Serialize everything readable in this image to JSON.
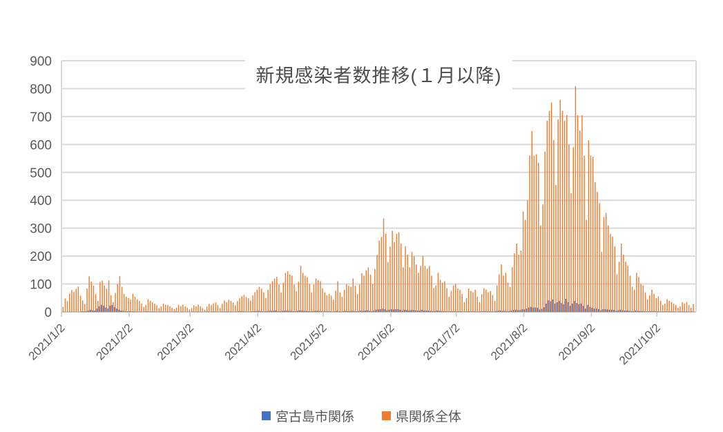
{
  "colors": {
    "background": "#ffffff",
    "grid": "#d9d9d9",
    "axis": "#c6c6c6",
    "text": "#595959",
    "series_blue": "#4472C4",
    "series_orange": "#ED7D31"
  },
  "chart_data": {
    "type": "bar",
    "title": "新規感染者数推移(１月以降)",
    "xlabel": "",
    "ylabel": "",
    "ylim": [
      0,
      900
    ],
    "y_ticks": [
      0,
      100,
      200,
      300,
      400,
      500,
      600,
      700,
      800,
      900
    ],
    "grid": "horizontal",
    "legend_position": "bottom",
    "start_date": "2021/1/2",
    "end_date": "2021/10/19",
    "x_ticks": [
      {
        "label": "2021/1/2",
        "day": 0
      },
      {
        "label": "2021/2/2",
        "day": 31
      },
      {
        "label": "2021/3/2",
        "day": 59
      },
      {
        "label": "2021/4/2",
        "day": 90
      },
      {
        "label": "2021/5/2",
        "day": 120
      },
      {
        "label": "2021/6/2",
        "day": 151
      },
      {
        "label": "2021/7/2",
        "day": 181
      },
      {
        "label": "2021/8/2",
        "day": 212
      },
      {
        "label": "2021/9/2",
        "day": 243
      },
      {
        "label": "2021/10/2",
        "day": 273
      }
    ],
    "series": [
      {
        "name": "宮古島市関係",
        "color": "#4472C4",
        "values": [
          0,
          0,
          0,
          0,
          0,
          0,
          0,
          0,
          0,
          2,
          2,
          3,
          5,
          8,
          6,
          5,
          12,
          20,
          25,
          22,
          16,
          12,
          22,
          25,
          18,
          12,
          8,
          5,
          4,
          3,
          2,
          3,
          2,
          2,
          1,
          1,
          1,
          0,
          1,
          2,
          1,
          1,
          1,
          0,
          0,
          1,
          1,
          0,
          1,
          0,
          0,
          0,
          1,
          1,
          0,
          1,
          0,
          0,
          0,
          0,
          1,
          0,
          1,
          0,
          0,
          0,
          1,
          1,
          0,
          1,
          1,
          0,
          0,
          1,
          1,
          1,
          2,
          1,
          1,
          0,
          1,
          2,
          2,
          2,
          1,
          1,
          1,
          2,
          3,
          3,
          4,
          3,
          2,
          1,
          3,
          4,
          4,
          5,
          5,
          3,
          2,
          4,
          5,
          5,
          4,
          4,
          3,
          2,
          4,
          6,
          5,
          4,
          4,
          3,
          2,
          3,
          4,
          4,
          3,
          3,
          2,
          2,
          2,
          2,
          1,
          2,
          4,
          2,
          1,
          3,
          4,
          3,
          3,
          4,
          3,
          2,
          3,
          5,
          4,
          5,
          6,
          4,
          3,
          5,
          8,
          9,
          10,
          12,
          10,
          6,
          8,
          10,
          9,
          10,
          10,
          8,
          5,
          8,
          7,
          5,
          7,
          7,
          6,
          5,
          5,
          7,
          5,
          5,
          5,
          4,
          3,
          3,
          5,
          4,
          3,
          3,
          2,
          2,
          2,
          3,
          3,
          2,
          2,
          2,
          1,
          1,
          2,
          2,
          2,
          2,
          1,
          1,
          2,
          2,
          2,
          2,
          2,
          1,
          1,
          3,
          4,
          5,
          4,
          4,
          3,
          3,
          5,
          7,
          8,
          6,
          7,
          10,
          9,
          12,
          16,
          18,
          16,
          16,
          15,
          9,
          11,
          17,
          30,
          42,
          38,
          45,
          30,
          35,
          40,
          32,
          28,
          47,
          35,
          22,
          30,
          40,
          32,
          28,
          30,
          22,
          12,
          25,
          18,
          15,
          12,
          12,
          10,
          6,
          10,
          10,
          9,
          8,
          8,
          7,
          4,
          6,
          8,
          6,
          5,
          5,
          4,
          3,
          3,
          5,
          4,
          3,
          3,
          2,
          2,
          2,
          3,
          2,
          2,
          2,
          1,
          1,
          1,
          2,
          1,
          1,
          1,
          1,
          0,
          1,
          1,
          1,
          1,
          1,
          0,
          1
        ]
      },
      {
        "name": "県関係全体",
        "color": "#ED7D31",
        "values": [
          18,
          48,
          39,
          66,
          78,
          72,
          83,
          91,
          58,
          42,
          28,
          84,
          128,
          108,
          94,
          64,
          40,
          108,
          112,
          95,
          83,
          113,
          60,
          35,
          68,
          100,
          128,
          90,
          65,
          55,
          50,
          44,
          65,
          55,
          45,
          40,
          30,
          18,
          25,
          46,
          40,
          35,
          30,
          24,
          14,
          20,
          30,
          26,
          25,
          20,
          15,
          10,
          15,
          25,
          20,
          26,
          20,
          15,
          9,
          14,
          24,
          20,
          26,
          20,
          14,
          8,
          19,
          29,
          25,
          31,
          34,
          25,
          14,
          29,
          41,
          35,
          44,
          40,
          34,
          24,
          39,
          49,
          56,
          61,
          54,
          49,
          41,
          59,
          71,
          80,
          90,
          84,
          70,
          50,
          79,
          100,
          110,
          120,
          126,
          98,
          70,
          104,
          140,
          146,
          134,
          130,
          98,
          74,
          108,
          165,
          140,
          130,
          124,
          100,
          70,
          98,
          120,
          114,
          110,
          84,
          70,
          60,
          64,
          58,
          44,
          76,
          110,
          70,
          55,
          79,
          100,
          94,
          90,
          120,
          94,
          64,
          98,
          139,
          130,
          149,
          160,
          134,
          100,
          154,
          204,
          255,
          269,
          335,
          281,
          179,
          234,
          291,
          250,
          280,
          285,
          245,
          160,
          235,
          205,
          160,
          215,
          200,
          170,
          140,
          165,
          200,
          165,
          155,
          165,
          130,
          85,
          95,
          140,
          115,
          105,
          110,
          85,
          55,
          75,
          95,
          100,
          84,
          80,
          64,
          35,
          50,
          84,
          75,
          70,
          80,
          55,
          35,
          64,
          85,
          80,
          70,
          75,
          60,
          40,
          95,
          135,
          170,
          130,
          140,
          105,
          90,
          160,
          210,
          245,
          205,
          220,
          360,
          330,
          400,
          560,
          648,
          560,
          565,
          535,
          310,
          385,
          575,
          685,
          720,
          750,
          615,
          455,
          690,
          760,
          720,
          685,
          705,
          600,
          425,
          590,
          809,
          705,
          650,
          705,
          560,
          330,
          615,
          560,
          556,
          465,
          430,
          390,
          215,
          340,
          355,
          310,
          280,
          270,
          235,
          135,
          180,
          245,
          205,
          180,
          165,
          130,
          90,
          80,
          140,
          125,
          100,
          95,
          70,
          45,
          60,
          80,
          65,
          50,
          56,
          40,
          25,
          30,
          46,
          40,
          35,
          30,
          25,
          15,
          20,
          35,
          30,
          35,
          25,
          15,
          28
        ]
      }
    ]
  }
}
